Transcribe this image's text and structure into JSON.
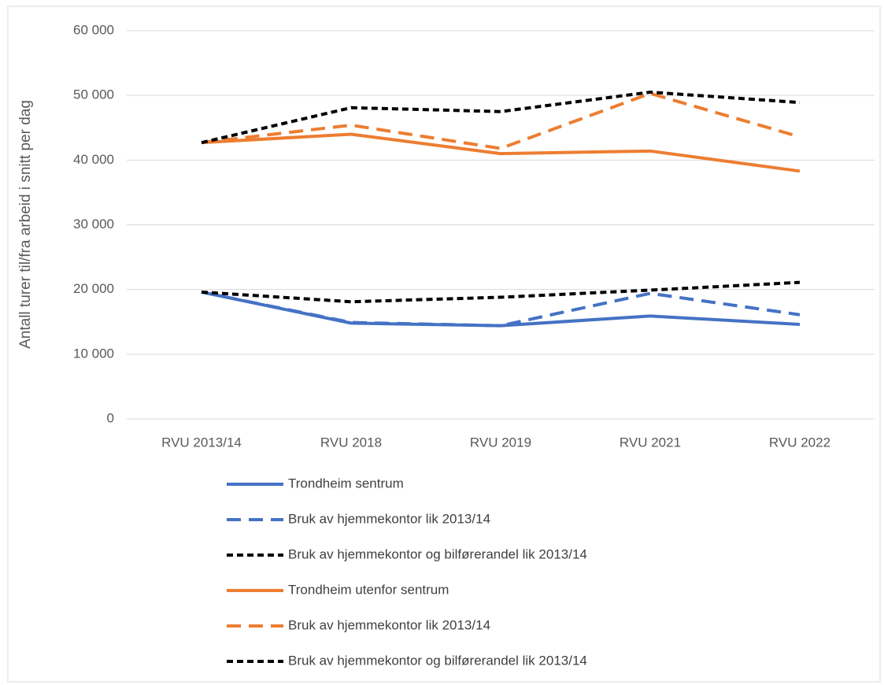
{
  "chart_data": {
    "type": "line",
    "y_label": "Antall turer til/fra arbeid i snitt per dag",
    "categories": [
      "RVU 2013/14",
      "RVU 2018",
      "RVU 2019",
      "RVU 2021",
      "RVU 2022"
    ],
    "series": [
      {
        "name": "Trondheim sentrum",
        "color": "#4472c4",
        "dash": "solid",
        "values": [
          19600,
          14800,
          14400,
          15900,
          14600
        ]
      },
      {
        "name": "Bruk av hjemmekontor lik 2013/14",
        "color": "#4472c4",
        "dash": "dashed",
        "values": [
          19600,
          14900,
          14400,
          19400,
          16100
        ]
      },
      {
        "name": "Bruk av hjemmekontor og bilførerandel lik 2013/14",
        "color": "#000000",
        "dash": "dotted",
        "values": [
          19600,
          18100,
          18800,
          19900,
          21100
        ]
      },
      {
        "name": "Trondheim utenfor sentrum",
        "color": "#ed7d31",
        "dash": "solid",
        "values": [
          42700,
          44000,
          41000,
          41400,
          38300
        ]
      },
      {
        "name": "Bruk av hjemmekontor lik 2013/14",
        "color": "#ed7d31",
        "dash": "dashed",
        "values": [
          42700,
          45400,
          41800,
          50300,
          43600
        ]
      },
      {
        "name": "Bruk av hjemmekontor og bilførerandel lik 2013/14",
        "color": "#000000",
        "dash": "dotted",
        "values": [
          42700,
          48100,
          47500,
          50500,
          48900
        ]
      }
    ],
    "ylim": [
      0,
      60000
    ],
    "yticks": [
      0,
      {
        "value": 10000,
        "label": "10 000"
      },
      {
        "value": 20000,
        "label": "20 000"
      },
      {
        "value": 30000,
        "label": "30 000"
      },
      {
        "value": 40000,
        "label": "40 000"
      },
      {
        "value": 50000,
        "label": "50 000"
      },
      {
        "value": 60000,
        "label": "60 000"
      }
    ],
    "grid": true,
    "legend": "bottom"
  }
}
